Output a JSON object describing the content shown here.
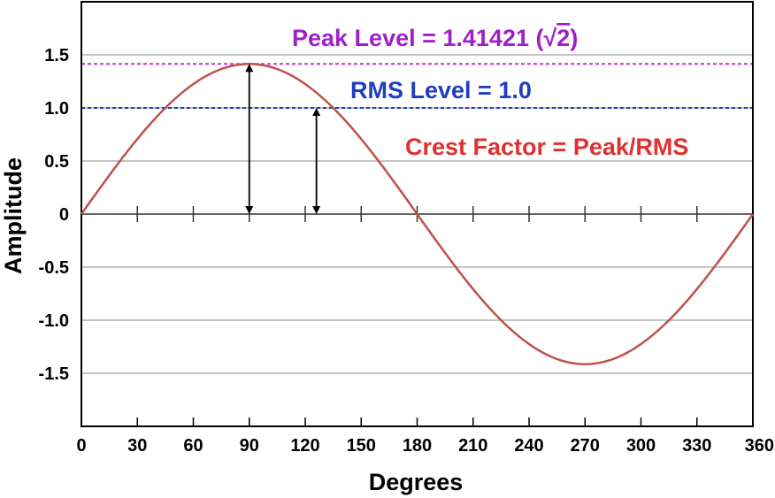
{
  "chart_data": {
    "type": "line",
    "title": "",
    "xlabel": "Degrees",
    "ylabel": "Amplitude",
    "xlim": [
      0,
      360
    ],
    "ylim": [
      -2,
      2
    ],
    "x_ticks": [
      0,
      30,
      60,
      90,
      120,
      150,
      180,
      210,
      240,
      270,
      300,
      330,
      360
    ],
    "x_tick_labels": [
      "0",
      "30",
      "60",
      "90",
      "120",
      "150",
      "180",
      "210",
      "240",
      "270",
      "300",
      "330",
      "360"
    ],
    "y_ticks": [
      1.5,
      1.0,
      0.5,
      0,
      -0.5,
      -1.0,
      -1.5
    ],
    "y_tick_labels": [
      "1.5",
      "1.0",
      "0.5",
      "0",
      "-0.5",
      "-1.0",
      "-1.5"
    ],
    "grid": true,
    "series": [
      {
        "color": "#c0504d",
        "x": [
          0,
          15,
          30,
          45,
          60,
          75,
          90,
          105,
          120,
          135,
          150,
          165,
          180,
          195,
          210,
          225,
          240,
          255,
          270,
          285,
          300,
          315,
          330,
          345,
          360
        ],
        "y": [
          0,
          0.366,
          0.7071,
          1.0,
          1.2247,
          1.366,
          1.41421,
          1.366,
          1.2247,
          1.0,
          0.7071,
          0.366,
          0,
          -0.366,
          -0.7071,
          -1.0,
          -1.2247,
          -1.366,
          -1.41421,
          -1.366,
          -1.2247,
          -1.0,
          -0.7071,
          -0.366,
          0
        ]
      }
    ],
    "reference_lines": [
      {
        "value": 1.41421,
        "color": "#cc33cc",
        "style": "dashed"
      },
      {
        "value": 1.0,
        "color": "#1f3fbf",
        "style": "dashed"
      }
    ],
    "arrows": [
      {
        "x": 90,
        "from": 0,
        "to": 1.41421
      },
      {
        "x": 126,
        "from": 0,
        "to": 1.0
      }
    ],
    "annotations": {
      "peak": {
        "text": "Peak Level = 1.41421 (",
        "sqrt": "2",
        "close": ")",
        "color": "#a020c8"
      },
      "rms": {
        "text": "RMS Level = 1.0",
        "color": "#1f3fbf"
      },
      "crest": {
        "text": "Crest Factor = Peak/RMS",
        "color": "#e03030"
      }
    }
  }
}
